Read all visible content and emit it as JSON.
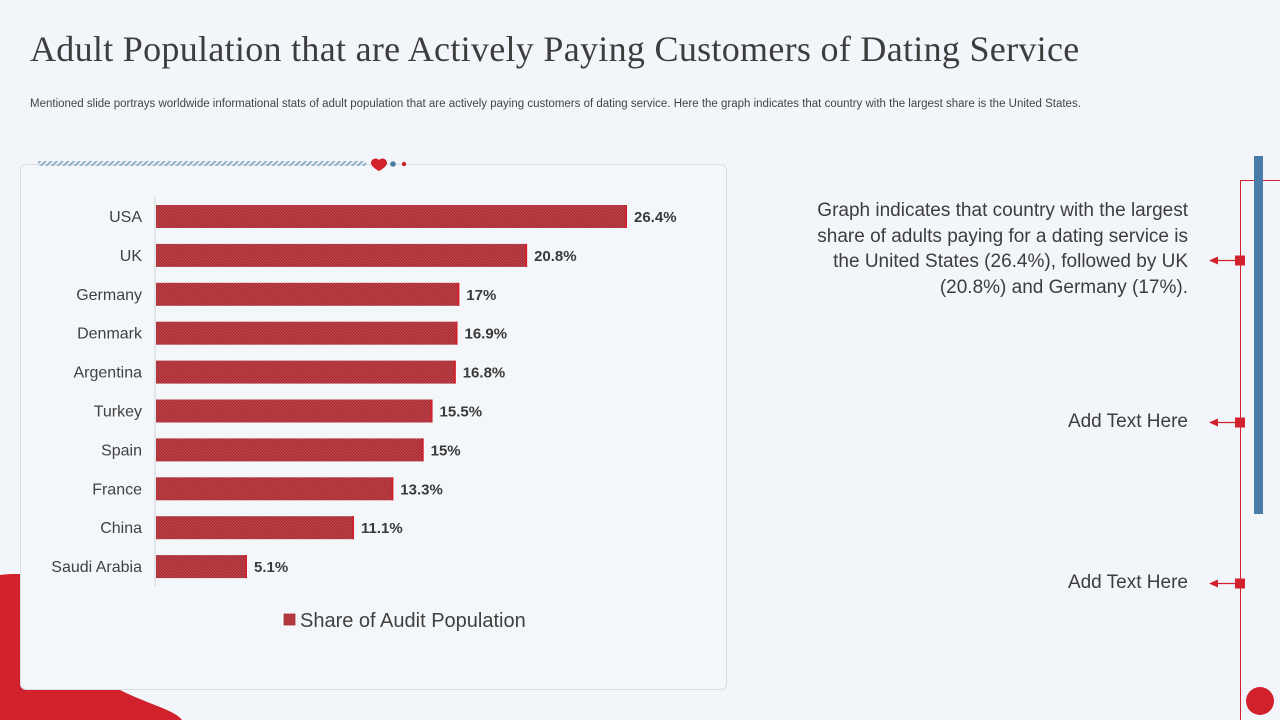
{
  "title": "Adult Population that are Actively Paying Customers of Dating Service",
  "subtitle": "Mentioned slide portrays worldwide  informational  stats of adult population that are actively paying customers of dating service. Here the graph indicates that country with the largest share is the United States.",
  "colors": {
    "accent": "#d0212d",
    "bar": "#b8323b",
    "blue": "#4a7ca8"
  },
  "chart_data": {
    "type": "bar",
    "orientation": "horizontal",
    "categories": [
      "USA",
      "UK",
      "Germany",
      "Denmark",
      "Argentina",
      "Turkey",
      "Spain",
      "France",
      "China",
      "Saudi Arabia"
    ],
    "values": [
      26.4,
      20.8,
      17,
      16.9,
      16.8,
      15.5,
      15,
      13.3,
      11.1,
      5.1
    ],
    "value_labels": [
      "26.4%",
      "20.8%",
      "17%",
      "16.9%",
      "16.8%",
      "15.5%",
      "15%",
      "13.3%",
      "11.1%",
      "5.1%"
    ],
    "series_name": "Share of Audit Population",
    "xlim": [
      0,
      30
    ],
    "legend_position": "bottom",
    "grid": false
  },
  "callouts": [
    "Graph indicates that country with the largest share of adults paying for a dating service is the United States (26.4%), followed by UK (20.8%) and Germany (17%).",
    "Add Text Here",
    "Add Text Here"
  ]
}
